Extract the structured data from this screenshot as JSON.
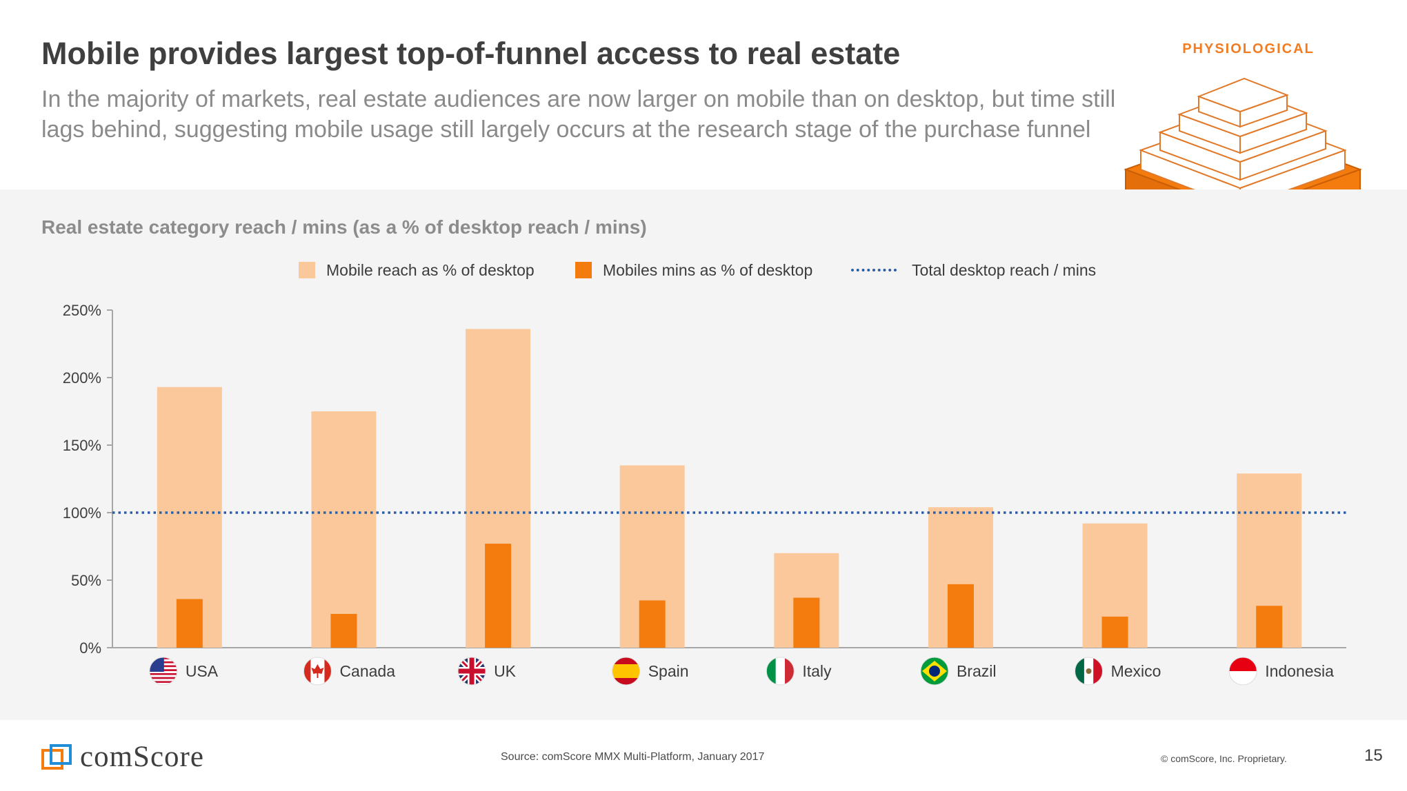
{
  "slide": {
    "title": "Mobile provides largest top-of-funnel access to real estate",
    "subtitle": "In the majority of markets, real estate audiences are now larger on mobile than on desktop, but time still lags behind, suggesting mobile usage still largely occurs at the research stage of the purchase funnel",
    "badge": "PHYSIOLOGICAL",
    "chart_heading": "Real estate category reach / mins (as a % of desktop reach / mins)",
    "legend": {
      "reach": "Mobile reach as % of desktop",
      "mins": "Mobiles mins as % of desktop",
      "line": "Total desktop reach / mins"
    },
    "footer": {
      "brand": "comScore",
      "source": "Source: comScore MMX Multi-Platform, January 2017",
      "copyright": "© comScore, Inc. Proprietary.",
      "page": "15"
    }
  },
  "colors": {
    "reach": "#fbc89b",
    "mins": "#f47c0f",
    "line": "#2c5ea8",
    "axis": "#a6a6a6",
    "accent": "#f47c20"
  },
  "chart_data": {
    "type": "bar",
    "title": "Real estate category reach / mins (as a % of desktop reach / mins)",
    "categories": [
      "USA",
      "Canada",
      "UK",
      "Spain",
      "Italy",
      "Brazil",
      "Mexico",
      "Indonesia"
    ],
    "series": [
      {
        "name": "Mobile reach as % of desktop",
        "values": [
          193,
          175,
          236,
          135,
          70,
          104,
          92,
          129
        ]
      },
      {
        "name": "Mobiles mins as % of desktop",
        "values": [
          36,
          25,
          77,
          35,
          37,
          47,
          23,
          31
        ]
      }
    ],
    "reference_line": {
      "name": "Total desktop reach / mins",
      "value": 100
    },
    "ylim": [
      0,
      250
    ],
    "yticks": [
      0,
      50,
      100,
      150,
      200,
      250
    ],
    "ytick_labels": [
      "0%",
      "50%",
      "100%",
      "150%",
      "200%",
      "250%"
    ],
    "xlabel": "",
    "ylabel": "",
    "category_icons": [
      "us-flag-icon",
      "canada-flag-icon",
      "uk-flag-icon",
      "spain-flag-icon",
      "italy-flag-icon",
      "brazil-flag-icon",
      "mexico-flag-icon",
      "indonesia-flag-icon"
    ]
  }
}
